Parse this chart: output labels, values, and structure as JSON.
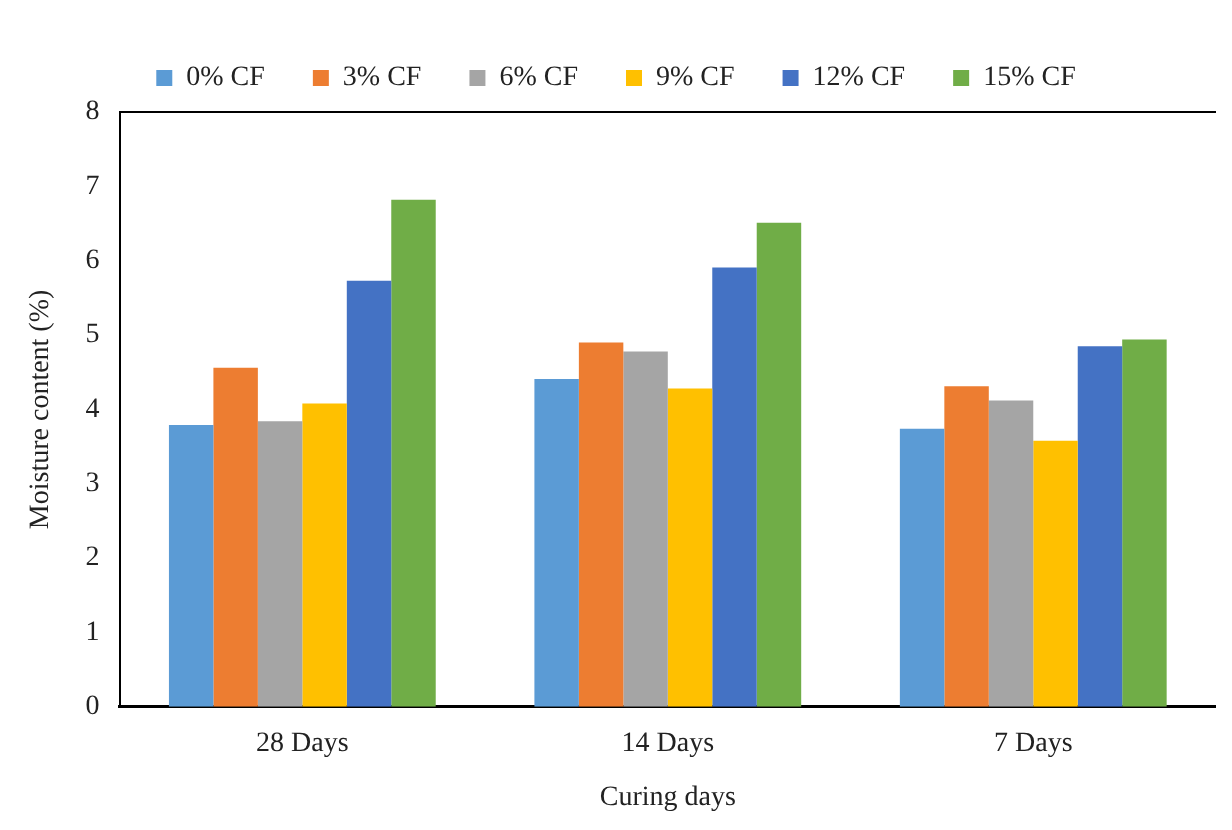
{
  "chart_data": {
    "type": "bar",
    "xlabel": "Curing days",
    "ylabel": "Moisture content (%)",
    "categories": [
      "28 Days",
      "14 Days",
      "7 Days"
    ],
    "series": [
      {
        "name": "0% CF",
        "color": "#5b9bd5",
        "values": [
          3.79,
          4.41,
          3.74
        ]
      },
      {
        "name": "3% CF",
        "color": "#ed7d31",
        "values": [
          4.56,
          4.9,
          4.31
        ]
      },
      {
        "name": "6% CF",
        "color": "#a5a5a5",
        "values": [
          3.84,
          4.78,
          4.12
        ]
      },
      {
        "name": "9% CF",
        "color": "#ffc000",
        "values": [
          4.08,
          4.28,
          3.58
        ]
      },
      {
        "name": "12% CF",
        "color": "#4472c4",
        "values": [
          5.73,
          5.91,
          4.85
        ]
      },
      {
        "name": "15% CF",
        "color": "#70ad47",
        "values": [
          6.82,
          6.51,
          4.94
        ]
      }
    ],
    "ylim": [
      0,
      8
    ],
    "yticks": [
      0,
      1,
      2,
      3,
      4,
      5,
      6,
      7,
      8
    ],
    "grid": false,
    "legend": "top"
  }
}
